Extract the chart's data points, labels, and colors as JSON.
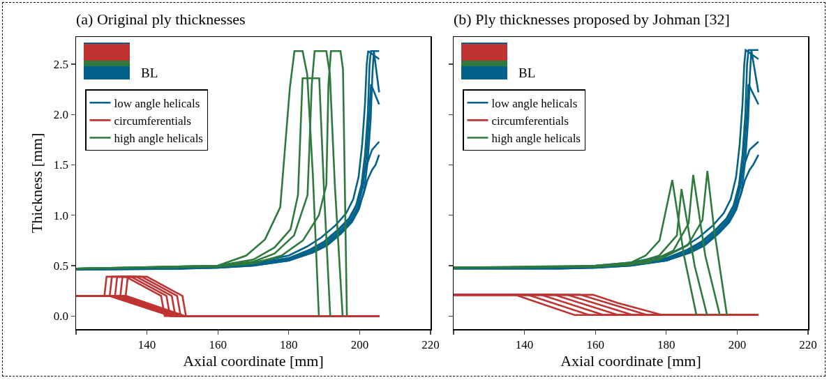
{
  "chart_data": [
    {
      "type": "line",
      "title": "(a) Original ply thicknesses",
      "xlabel": "Axial coordinate [mm]",
      "ylabel": "Thickness [mm]",
      "annotations": [
        "BL"
      ],
      "xlim": [
        120,
        220
      ],
      "xticks": [
        {
          "value": 120,
          "label": null
        },
        140,
        160,
        180,
        200,
        220
      ],
      "ylim": [
        -0.13,
        2.77
      ],
      "yticks": [
        {
          "value": 0,
          "label": "0.0"
        },
        0.5,
        {
          "value": 1,
          "label": "1.0"
        },
        1.5,
        {
          "value": 2,
          "label": "2.0"
        },
        2.5
      ],
      "legend": "top left",
      "grid": false,
      "series": [
        {
          "name": "low angle helicals",
          "color": "#03628a",
          "x": [
            120,
            150,
            160,
            170,
            180,
            186,
            190,
            194,
            197,
            199,
            200.5,
            201.5,
            202.3,
            202.8,
            203.2,
            205.5
          ],
          "values": [
            0.47,
            0.48,
            0.49,
            0.52,
            0.575,
            0.66,
            0.74,
            0.86,
            0.97,
            1.1,
            1.3,
            1.6,
            2.0,
            2.5,
            2.63,
            2.63
          ]
        },
        {
          "color": "#03628a",
          "x": [
            120,
            150,
            160,
            170,
            180,
            185.2,
            189.2,
            193.2,
            196.2,
            198.2,
            199.7,
            200.7,
            201.5,
            202,
            202.4,
            205.5
          ],
          "values": [
            0.47,
            0.48,
            0.5,
            0.53,
            0.6,
            0.69,
            0.78,
            0.9,
            1.02,
            1.16,
            1.38,
            1.7,
            2.1,
            2.5,
            2.63,
            2.55
          ]
        },
        {
          "color": "#03628a",
          "x": [
            120,
            150,
            160,
            170,
            180,
            186.8,
            190.8,
            194.8,
            197.8,
            199.8,
            201.3,
            202.3,
            203.1,
            203.6,
            204,
            205.5
          ],
          "values": [
            0.46,
            0.47,
            0.48,
            0.5,
            0.55,
            0.63,
            0.7,
            0.82,
            0.93,
            1.06,
            1.25,
            1.55,
            1.95,
            2.4,
            2.63,
            2.22
          ]
        },
        {
          "color": "#03628a",
          "x": [
            120,
            150,
            160,
            170,
            180,
            186.4,
            190.4,
            194.4,
            197.4,
            199.4,
            200.9,
            201.9,
            202.7,
            203.2,
            205.5
          ],
          "values": [
            0.47,
            0.47,
            0.49,
            0.51,
            0.56,
            0.64,
            0.72,
            0.84,
            0.95,
            1.08,
            1.28,
            1.58,
            1.98,
            2.3,
            2.1
          ]
        },
        {
          "color": "#03628a",
          "x": [
            120,
            150,
            160,
            170,
            180,
            186,
            190,
            194,
            197,
            199,
            200.5,
            201.5,
            202.5,
            203.5,
            205.5
          ],
          "values": [
            0.47,
            0.48,
            0.49,
            0.52,
            0.57,
            0.65,
            0.73,
            0.85,
            0.96,
            1.09,
            1.28,
            1.45,
            1.55,
            1.65,
            1.73
          ]
        },
        {
          "color": "#03628a",
          "x": [
            120,
            150,
            160,
            170,
            180,
            186.5,
            190.5,
            194.5,
            197.5,
            199.5,
            201,
            202.2,
            203.5,
            204.5,
            205.5
          ],
          "values": [
            0.46,
            0.47,
            0.48,
            0.5,
            0.55,
            0.63,
            0.71,
            0.83,
            0.94,
            1.07,
            1.2,
            1.35,
            1.45,
            1.5,
            1.6
          ]
        },
        {
          "name": "circumferentials",
          "color": "#c03333",
          "x": [
            120,
            128,
            128.6,
            134,
            144,
            145,
            205.5
          ],
          "values": [
            0.2,
            0.2,
            0.39,
            0.39,
            0.2,
            0.0,
            0.0
          ]
        },
        {
          "color": "#c03333",
          "x": [
            120,
            129.5,
            130.1,
            135.5,
            145.5,
            146.5,
            205.5
          ],
          "values": [
            0.2,
            0.2,
            0.39,
            0.39,
            0.2,
            0.0,
            0.0
          ]
        },
        {
          "color": "#c03333",
          "x": [
            120,
            131,
            131.6,
            137,
            147,
            148,
            205.5
          ],
          "values": [
            0.2,
            0.2,
            0.39,
            0.39,
            0.2,
            0.0,
            0.0
          ]
        },
        {
          "color": "#c03333",
          "x": [
            120,
            132.5,
            133.1,
            138.5,
            148.5,
            149.5,
            205.5
          ],
          "values": [
            0.2,
            0.2,
            0.39,
            0.39,
            0.2,
            0.0,
            0.0
          ]
        },
        {
          "color": "#c03333",
          "x": [
            120,
            134,
            134.6,
            140,
            150,
            151,
            205.5
          ],
          "values": [
            0.2,
            0.2,
            0.39,
            0.39,
            0.2,
            0.0,
            0.0
          ]
        },
        {
          "color": "#c03333",
          "x": [
            120,
            129.3,
            146.7,
            205.5
          ],
          "values": [
            0.2,
            0.2,
            0.0,
            0.0
          ]
        },
        {
          "color": "#c03333",
          "x": [
            120,
            130.5,
            147.7,
            205.5
          ],
          "values": [
            0.2,
            0.2,
            0.0,
            0.0
          ]
        },
        {
          "color": "#c03333",
          "x": [
            120,
            131.7,
            148.7,
            205.5
          ],
          "values": [
            0.2,
            0.2,
            0.0,
            0.0
          ]
        },
        {
          "color": "#c03333",
          "x": [
            120,
            132.9,
            149.7,
            205.5
          ],
          "values": [
            0.2,
            0.2,
            0.0,
            0.0
          ]
        },
        {
          "color": "#c03333",
          "x": [
            120,
            134.1,
            150.7,
            205.5
          ],
          "values": [
            0.2,
            0.2,
            0.0,
            0.0
          ]
        },
        {
          "name": "high angle helicals",
          "color": "#2e7a3c",
          "x": [
            120,
            160,
            168,
            173.3,
            177.6,
            180.3,
            181.6,
            183.9,
            185.2,
            186.8,
            188.5
          ],
          "values": [
            0.47,
            0.5,
            0.6,
            0.76,
            1.08,
            2.26,
            2.63,
            2.63,
            2.4,
            1.4,
            0.0
          ]
        },
        {
          "color": "#2e7a3c",
          "x": [
            120,
            160,
            170,
            176,
            180.5,
            182.6,
            183.9,
            188.6,
            190,
            191.7
          ],
          "values": [
            0.47,
            0.5,
            0.56,
            0.68,
            0.86,
            1.2,
            2.36,
            2.36,
            1.2,
            0.0
          ]
        },
        {
          "color": "#2e7a3c",
          "x": [
            120,
            160,
            170,
            176,
            181.5,
            185.3,
            186.5,
            187.3,
            190.6,
            191.6,
            193,
            195.2
          ],
          "values": [
            0.47,
            0.5,
            0.54,
            0.62,
            0.8,
            1.2,
            2.3,
            2.63,
            2.63,
            2.4,
            1.3,
            0.0
          ]
        },
        {
          "color": "#2e7a3c",
          "x": [
            120,
            160,
            170,
            178,
            184,
            188.5,
            190.6,
            191.2,
            191.9,
            194.6,
            195.3,
            196.4
          ],
          "values": [
            0.47,
            0.49,
            0.52,
            0.6,
            0.75,
            1.0,
            1.3,
            2.3,
            2.63,
            2.63,
            2.45,
            0.0
          ]
        }
      ]
    },
    {
      "type": "line",
      "title": "(b) Ply thicknesses proposed by Johman [32]",
      "xlabel": "Axial coordinate [mm]",
      "annotations": [
        "BL"
      ],
      "xlim": [
        120,
        220
      ],
      "xticks": [
        {
          "value": 120,
          "label": null
        },
        140,
        160,
        180,
        200,
        220
      ],
      "ylim": [
        -0.13,
        2.77
      ],
      "yticks": [
        {
          "value": 0.0,
          "label": null
        },
        {
          "value": 0.5,
          "label": null
        },
        {
          "value": 1.0,
          "label": null
        },
        {
          "value": 1.5,
          "label": null
        },
        {
          "value": 2.0,
          "label": null
        },
        {
          "value": 2.5,
          "label": null
        }
      ],
      "tick_labels": "x",
      "legend": "top left",
      "grid": false,
      "series": [
        {
          "name": "low angle helicals",
          "color": "#03628a",
          "x": [
            120,
            150,
            160,
            170,
            180,
            186,
            190,
            194,
            197,
            199,
            200.5,
            201.5,
            202.3,
            202.8,
            203.2,
            206
          ],
          "values": [
            0.48,
            0.48,
            0.49,
            0.52,
            0.575,
            0.66,
            0.74,
            0.86,
            0.97,
            1.1,
            1.3,
            1.6,
            2.0,
            2.5,
            2.64,
            2.64
          ]
        },
        {
          "color": "#03628a",
          "x": [
            120,
            150,
            160,
            170,
            180,
            185.2,
            189.2,
            193.2,
            196.2,
            198.2,
            199.7,
            200.7,
            201.5,
            202,
            202.4,
            206
          ],
          "values": [
            0.48,
            0.48,
            0.5,
            0.53,
            0.6,
            0.69,
            0.78,
            0.9,
            1.02,
            1.16,
            1.38,
            1.7,
            2.1,
            2.5,
            2.64,
            2.55
          ]
        },
        {
          "color": "#03628a",
          "x": [
            120,
            150,
            160,
            170,
            180,
            186.8,
            190.8,
            194.8,
            197.8,
            199.8,
            201.3,
            202.3,
            203.1,
            203.6,
            204,
            206
          ],
          "values": [
            0.47,
            0.47,
            0.48,
            0.5,
            0.55,
            0.63,
            0.7,
            0.82,
            0.93,
            1.06,
            1.25,
            1.55,
            1.95,
            2.4,
            2.64,
            2.22
          ]
        },
        {
          "color": "#03628a",
          "x": [
            120,
            150,
            160,
            170,
            180,
            186.4,
            190.4,
            194.4,
            197.4,
            199.4,
            200.9,
            201.9,
            202.7,
            203.2,
            206
          ],
          "values": [
            0.48,
            0.48,
            0.49,
            0.51,
            0.56,
            0.64,
            0.72,
            0.84,
            0.95,
            1.08,
            1.28,
            1.58,
            1.98,
            2.3,
            2.1
          ]
        },
        {
          "color": "#03628a",
          "x": [
            120,
            150,
            160,
            170,
            180,
            186,
            190,
            194,
            197,
            199,
            200.5,
            201.5,
            202.5,
            203.5,
            206
          ],
          "values": [
            0.48,
            0.48,
            0.49,
            0.52,
            0.57,
            0.65,
            0.73,
            0.85,
            0.96,
            1.09,
            1.28,
            1.45,
            1.55,
            1.65,
            1.73
          ]
        },
        {
          "color": "#03628a",
          "x": [
            120,
            150,
            160,
            170,
            180,
            186.5,
            190.5,
            194.5,
            197.5,
            199.5,
            201,
            202.2,
            203.5,
            204.5,
            206
          ],
          "values": [
            0.47,
            0.47,
            0.48,
            0.5,
            0.55,
            0.63,
            0.71,
            0.83,
            0.94,
            1.07,
            1.2,
            1.35,
            1.45,
            1.5,
            1.6
          ]
        },
        {
          "name": "circumferentials",
          "color": "#c03333",
          "x": [
            120,
            137.4,
            154.1,
            206
          ],
          "values": [
            0.21,
            0.21,
            0.01,
            0.01
          ]
        },
        {
          "color": "#c03333",
          "x": [
            120,
            141,
            158.2,
            206
          ],
          "values": [
            0.21,
            0.21,
            0.01,
            0.01
          ]
        },
        {
          "color": "#c03333",
          "x": [
            120,
            144.7,
            162.3,
            206
          ],
          "values": [
            0.21,
            0.21,
            0.01,
            0.01
          ]
        },
        {
          "color": "#c03333",
          "x": [
            120,
            148.4,
            166.4,
            206
          ],
          "values": [
            0.21,
            0.21,
            0.01,
            0.01
          ]
        },
        {
          "color": "#c03333",
          "x": [
            120,
            152.1,
            170.5,
            206
          ],
          "values": [
            0.21,
            0.21,
            0.01,
            0.01
          ]
        },
        {
          "color": "#c03333",
          "x": [
            120,
            155.8,
            174.6,
            206
          ],
          "values": [
            0.21,
            0.21,
            0.01,
            0.01
          ]
        },
        {
          "color": "#c03333",
          "x": [
            120,
            159.4,
            166.3,
            178.8,
            206
          ],
          "values": [
            0.21,
            0.21,
            0.13,
            0.01,
            0.01
          ]
        },
        {
          "name": "high angle helicals",
          "color": "#2e7a3c",
          "x": [
            120,
            160,
            170,
            174.2,
            178.1,
            181.7,
            185,
            188.5
          ],
          "values": [
            0.48,
            0.5,
            0.53,
            0.6,
            0.75,
            1.35,
            0.6,
            0.01
          ]
        },
        {
          "color": "#2e7a3c",
          "x": [
            120,
            160,
            170,
            178,
            183,
            184.3,
            188,
            191.5
          ],
          "values": [
            0.48,
            0.49,
            0.51,
            0.6,
            0.8,
            1.26,
            0.5,
            0.01
          ]
        },
        {
          "color": "#2e7a3c",
          "x": [
            120,
            160,
            175,
            182,
            186.3,
            187.6,
            191,
            195.1
          ],
          "values": [
            0.48,
            0.49,
            0.53,
            0.65,
            0.92,
            1.4,
            0.6,
            0.01
          ]
        },
        {
          "color": "#2e7a3c",
          "x": [
            120,
            160,
            178,
            186,
            190.2,
            191.6,
            193.5,
            197.1
          ],
          "values": [
            0.48,
            0.49,
            0.56,
            0.7,
            0.95,
            1.44,
            0.86,
            0.01
          ]
        }
      ]
    }
  ]
}
